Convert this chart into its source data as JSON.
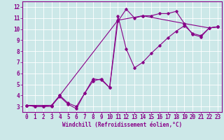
{
  "xlabel": "Windchill (Refroidissement éolien,°C)",
  "background_color": "#cce8e8",
  "line_color": "#880088",
  "grid_color": "#aad4d4",
  "xlim": [
    -0.5,
    23.5
  ],
  "ylim": [
    2.5,
    12.5
  ],
  "xticks": [
    0,
    1,
    2,
    3,
    4,
    5,
    6,
    7,
    8,
    9,
    10,
    11,
    12,
    13,
    14,
    15,
    16,
    17,
    18,
    19,
    20,
    21,
    22,
    23
  ],
  "yticks": [
    3,
    4,
    5,
    6,
    7,
    8,
    9,
    10,
    11,
    12
  ],
  "line1_x": [
    0,
    1,
    2,
    3,
    4,
    5,
    6,
    7,
    8,
    9,
    10,
    11,
    12,
    13,
    14,
    15,
    16,
    17,
    18,
    19,
    20,
    21,
    22,
    23
  ],
  "line1_y": [
    3.1,
    3.0,
    3.0,
    3.0,
    4.0,
    3.3,
    3.0,
    4.2,
    5.3,
    5.5,
    4.7,
    10.7,
    11.8,
    11.0,
    11.2,
    11.2,
    11.4,
    11.4,
    11.6,
    10.5,
    9.5,
    9.3,
    10.1,
    10.2
  ],
  "line2_x": [
    0,
    1,
    2,
    3,
    4,
    5,
    6,
    7,
    8,
    9,
    10,
    11,
    12,
    13,
    14,
    15,
    16,
    17,
    18,
    19,
    20,
    21,
    22,
    23
  ],
  "line2_y": [
    3.1,
    3.0,
    3.0,
    3.1,
    3.9,
    3.2,
    2.8,
    4.2,
    5.5,
    5.4,
    4.7,
    11.2,
    8.2,
    6.5,
    7.0,
    7.8,
    8.5,
    9.2,
    9.8,
    10.3,
    9.6,
    9.4,
    10.1,
    10.2
  ],
  "line3_x": [
    0,
    3,
    4,
    11,
    14,
    19,
    22,
    23
  ],
  "line3_y": [
    3.1,
    3.1,
    4.0,
    10.8,
    11.2,
    10.5,
    10.1,
    10.2
  ],
  "tick_fontsize": 5.5,
  "xlabel_fontsize": 5.5
}
